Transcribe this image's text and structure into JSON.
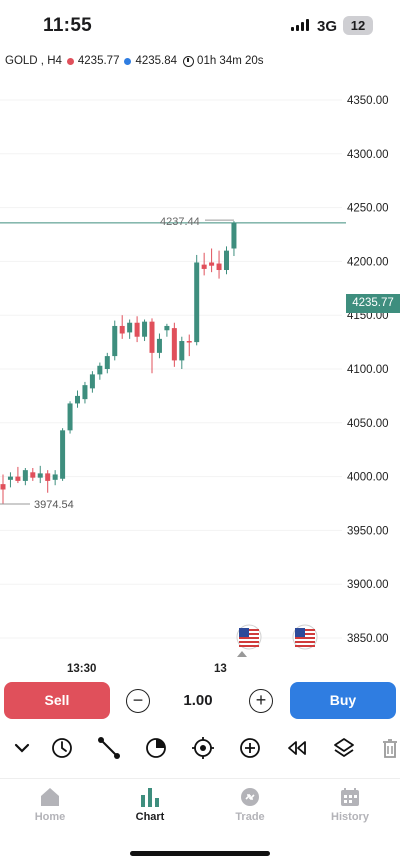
{
  "status_bar": {
    "time": "11:55",
    "network": "3G",
    "battery": "12"
  },
  "symbol_bar": {
    "symbol": "GOLD",
    "timeframe": "H4",
    "bid": "4235.77",
    "ask": "4235.84",
    "countdown": "01h 34m 20s",
    "colors": {
      "bid_dot": "#e0505b",
      "ask_dot": "#2f7de1"
    }
  },
  "chart": {
    "current_price_tag": "4235.77",
    "high_label": "4237.44",
    "low_label": "3974.54",
    "x_labels": [
      "13:30",
      "13"
    ],
    "colors": {
      "bull": "#3e8e7e",
      "bear": "#e0505b",
      "price_line": "#3e8e7e"
    }
  },
  "chart_data": {
    "type": "candlestick",
    "symbol": "GOLD",
    "timeframe": "H4",
    "y_ticks": [
      "4350.00",
      "4300.00",
      "4250.00",
      "4200.00",
      "4150.00",
      "4100.00",
      "4050.00",
      "4000.00",
      "3950.00",
      "3900.00",
      "3850.00"
    ],
    "ylim": [
      3840,
      4370
    ],
    "current_price": 4235.77,
    "marked_high": 4237.44,
    "marked_low": 3974.54,
    "candles": [
      {
        "o": 3993,
        "h": 4002,
        "l": 3975,
        "c": 3988
      },
      {
        "o": 3997,
        "h": 4004,
        "l": 3990,
        "c": 4000
      },
      {
        "o": 4000,
        "h": 4009,
        "l": 3994,
        "c": 3996
      },
      {
        "o": 3996,
        "h": 4008,
        "l": 3992,
        "c": 4006
      },
      {
        "o": 4004,
        "h": 4008,
        "l": 3996,
        "c": 3999
      },
      {
        "o": 3999,
        "h": 4010,
        "l": 3994,
        "c": 4003
      },
      {
        "o": 4003,
        "h": 4006,
        "l": 3985,
        "c": 3996
      },
      {
        "o": 3997,
        "h": 4006,
        "l": 3992,
        "c": 4002
      },
      {
        "o": 3998,
        "h": 4045,
        "l": 3996,
        "c": 4043
      },
      {
        "o": 4043,
        "h": 4070,
        "l": 4040,
        "c": 4068
      },
      {
        "o": 4068,
        "h": 4080,
        "l": 4064,
        "c": 4075
      },
      {
        "o": 4072,
        "h": 4088,
        "l": 4068,
        "c": 4085
      },
      {
        "o": 4082,
        "h": 4098,
        "l": 4078,
        "c": 4095
      },
      {
        "o": 4095,
        "h": 4106,
        "l": 4090,
        "c": 4103
      },
      {
        "o": 4100,
        "h": 4115,
        "l": 4096,
        "c": 4112
      },
      {
        "o": 4112,
        "h": 4145,
        "l": 4108,
        "c": 4140
      },
      {
        "o": 4140,
        "h": 4150,
        "l": 4128,
        "c": 4133
      },
      {
        "o": 4134,
        "h": 4146,
        "l": 4128,
        "c": 4143
      },
      {
        "o": 4143,
        "h": 4149,
        "l": 4125,
        "c": 4130
      },
      {
        "o": 4130,
        "h": 4146,
        "l": 4126,
        "c": 4144
      },
      {
        "o": 4144,
        "h": 4147,
        "l": 4096,
        "c": 4115
      },
      {
        "o": 4115,
        "h": 4133,
        "l": 4110,
        "c": 4128
      },
      {
        "o": 4136,
        "h": 4142,
        "l": 4130,
        "c": 4140
      },
      {
        "o": 4138,
        "h": 4143,
        "l": 4102,
        "c": 4108
      },
      {
        "o": 4108,
        "h": 4130,
        "l": 4100,
        "c": 4126
      },
      {
        "o": 4126,
        "h": 4132,
        "l": 4112,
        "c": 4125
      },
      {
        "o": 4125,
        "h": 4206,
        "l": 4122,
        "c": 4199
      },
      {
        "o": 4197,
        "h": 4208,
        "l": 4187,
        "c": 4193
      },
      {
        "o": 4199,
        "h": 4212,
        "l": 4190,
        "c": 4196
      },
      {
        "o": 4198,
        "h": 4210,
        "l": 4184,
        "c": 4192
      },
      {
        "o": 4192,
        "h": 4214,
        "l": 4188,
        "c": 4210
      },
      {
        "o": 4212,
        "h": 4237.44,
        "l": 4205,
        "c": 4235.77
      }
    ]
  },
  "order_bar": {
    "sell_label": "Sell",
    "buy_label": "Buy",
    "lot": "1.00",
    "minus": "−",
    "plus": "+"
  },
  "toolbar": {
    "icons": [
      "chevron-down-icon",
      "clock-icon",
      "trendline-icon",
      "pie-chart-icon",
      "crosshair-icon",
      "add-indicator-icon",
      "rewind-icon",
      "layers-icon",
      "trash-icon"
    ]
  },
  "tab_bar": {
    "tabs": [
      {
        "label": "Home",
        "icon": "home-icon",
        "active": false
      },
      {
        "label": "Chart",
        "icon": "bar-chart-icon",
        "active": true
      },
      {
        "label": "Trade",
        "icon": "trade-icon",
        "active": false
      },
      {
        "label": "History",
        "icon": "calendar-icon",
        "active": false
      }
    ]
  }
}
